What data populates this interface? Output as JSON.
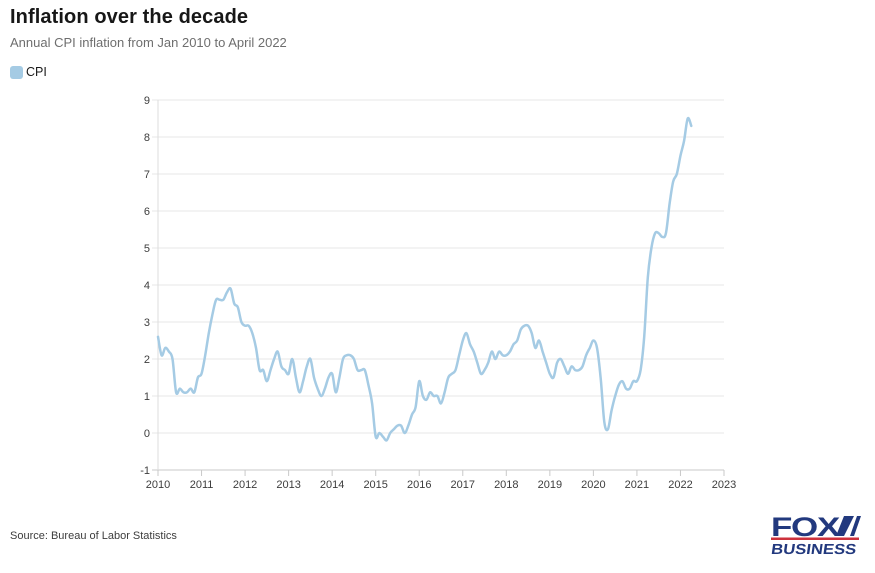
{
  "header": {
    "title": "Inflation over the decade",
    "subtitle": "Annual CPI inflation from Jan 2010 to April 2022"
  },
  "legend": {
    "label": "CPI"
  },
  "footer": {
    "source": "Source: Bureau of Labor Statistics"
  },
  "logo": {
    "line1": "FOX",
    "line2": "BUSINESS",
    "navy": "#22397e",
    "red": "#cd323c"
  },
  "chart_data": {
    "type": "line",
    "title": "Inflation over the decade",
    "subtitle": "Annual CPI inflation from Jan 2010 to April 2022",
    "xlabel": "",
    "ylabel": "",
    "x_start": "2010-01",
    "x_end": "2022-04",
    "frequency": "monthly",
    "xlim_years": [
      2010,
      2023
    ],
    "ylim": [
      -1,
      9
    ],
    "y_ticks": [
      -1,
      0,
      1,
      2,
      3,
      4,
      5,
      6,
      7,
      8,
      9
    ],
    "x_ticks": [
      "2010",
      "2011",
      "2012",
      "2013",
      "2014",
      "2015",
      "2016",
      "2017",
      "2018",
      "2019",
      "2020",
      "2021",
      "2022",
      "2023"
    ],
    "grid": "horizontal",
    "legend_position": "top-left",
    "line_color": "#a5cbe4",
    "grid_color": "#e7e7e7",
    "axis_color": "#c9c9c9",
    "label_color": "#3d3d3d",
    "series": [
      {
        "name": "CPI",
        "values": [
          2.6,
          2.1,
          2.3,
          2.2,
          2.0,
          1.1,
          1.2,
          1.1,
          1.1,
          1.2,
          1.1,
          1.5,
          1.6,
          2.1,
          2.7,
          3.2,
          3.6,
          3.6,
          3.6,
          3.8,
          3.9,
          3.5,
          3.4,
          3.0,
          2.9,
          2.9,
          2.7,
          2.3,
          1.7,
          1.7,
          1.4,
          1.7,
          2.0,
          2.2,
          1.8,
          1.7,
          1.6,
          2.0,
          1.5,
          1.1,
          1.4,
          1.8,
          2.0,
          1.5,
          1.2,
          1.0,
          1.2,
          1.5,
          1.6,
          1.1,
          1.5,
          2.0,
          2.1,
          2.1,
          2.0,
          1.7,
          1.7,
          1.7,
          1.3,
          0.8,
          -0.1,
          0.0,
          -0.1,
          -0.2,
          0.0,
          0.1,
          0.2,
          0.2,
          0.0,
          0.2,
          0.5,
          0.7,
          1.4,
          1.0,
          0.9,
          1.1,
          1.0,
          1.0,
          0.8,
          1.1,
          1.5,
          1.6,
          1.7,
          2.1,
          2.5,
          2.7,
          2.4,
          2.2,
          1.9,
          1.6,
          1.7,
          1.9,
          2.2,
          2.0,
          2.2,
          2.1,
          2.1,
          2.2,
          2.4,
          2.5,
          2.8,
          2.9,
          2.9,
          2.7,
          2.3,
          2.5,
          2.2,
          1.9,
          1.6,
          1.5,
          1.9,
          2.0,
          1.8,
          1.6,
          1.8,
          1.7,
          1.7,
          1.8,
          2.1,
          2.3,
          2.5,
          2.3,
          1.5,
          0.3,
          0.1,
          0.6,
          1.0,
          1.3,
          1.4,
          1.2,
          1.2,
          1.4,
          1.4,
          1.7,
          2.6,
          4.2,
          5.0,
          5.4,
          5.4,
          5.3,
          5.4,
          6.2,
          6.8,
          7.0,
          7.5,
          7.9,
          8.5,
          8.3
        ]
      }
    ]
  }
}
